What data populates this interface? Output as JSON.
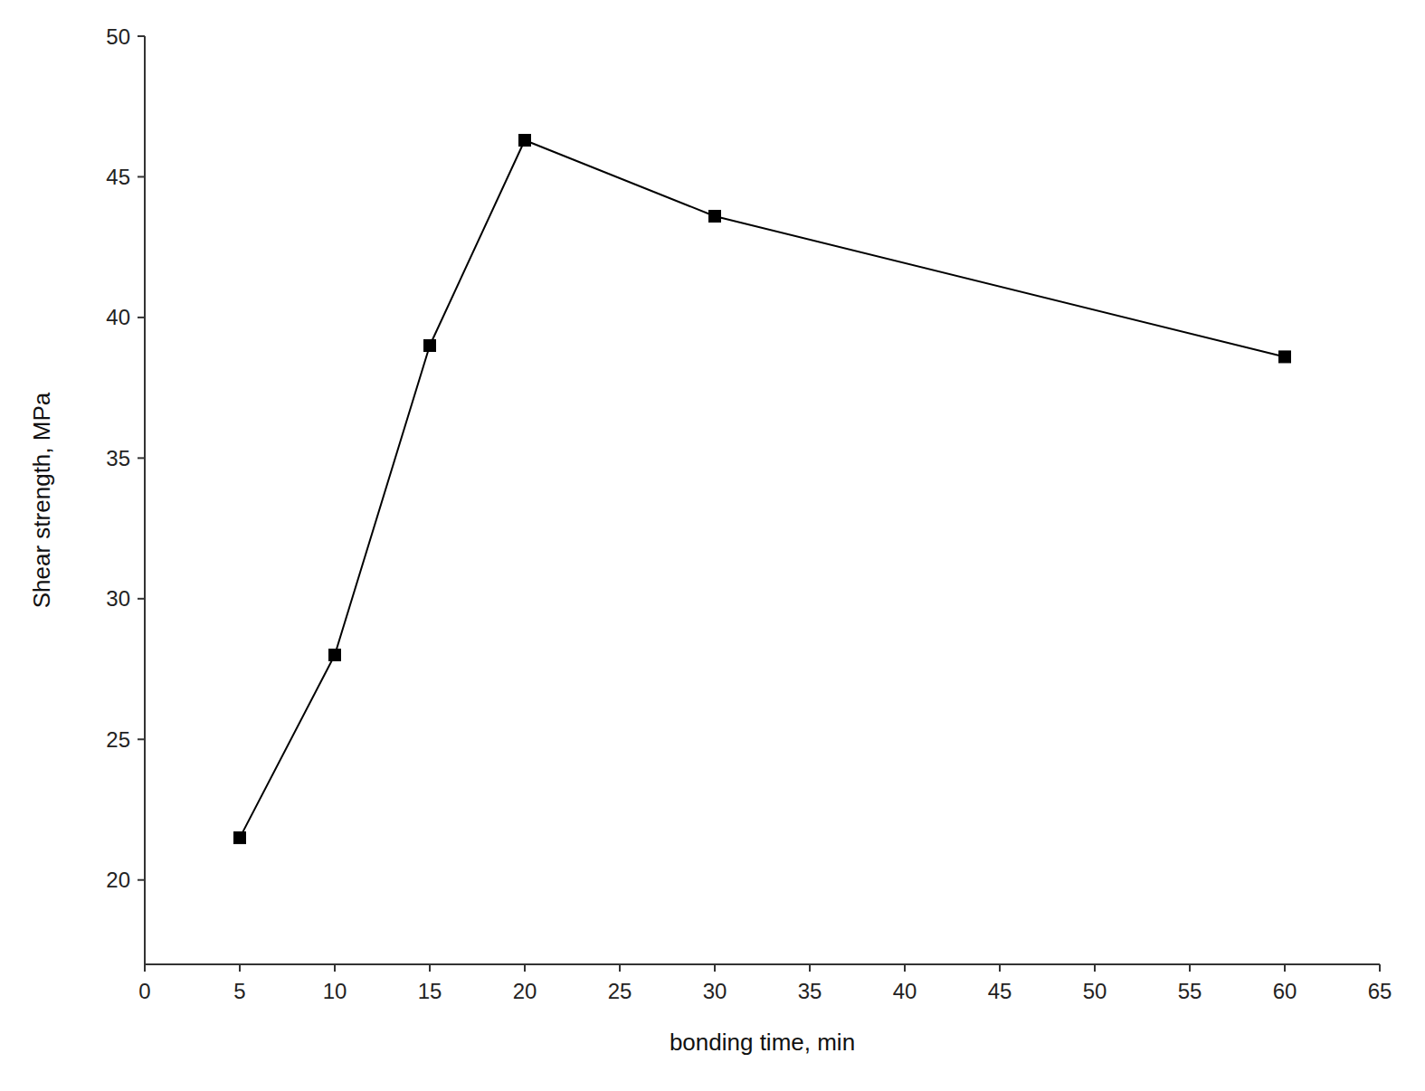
{
  "chart_data": {
    "type": "line",
    "x": [
      5,
      10,
      15,
      20,
      30,
      60
    ],
    "values": [
      21.5,
      28.0,
      39.0,
      46.3,
      43.6,
      38.6
    ],
    "xlabel": "bonding time, min",
    "ylabel": "Shear strength, MPa",
    "xlim": [
      0,
      65
    ],
    "ylim": [
      17,
      50
    ],
    "xticks": [
      0,
      5,
      10,
      15,
      20,
      25,
      30,
      35,
      40,
      45,
      50,
      55,
      60,
      65
    ],
    "yticks": [
      20,
      25,
      30,
      35,
      40,
      45,
      50
    ],
    "color": "#000000",
    "marker": "square",
    "grid": false
  }
}
